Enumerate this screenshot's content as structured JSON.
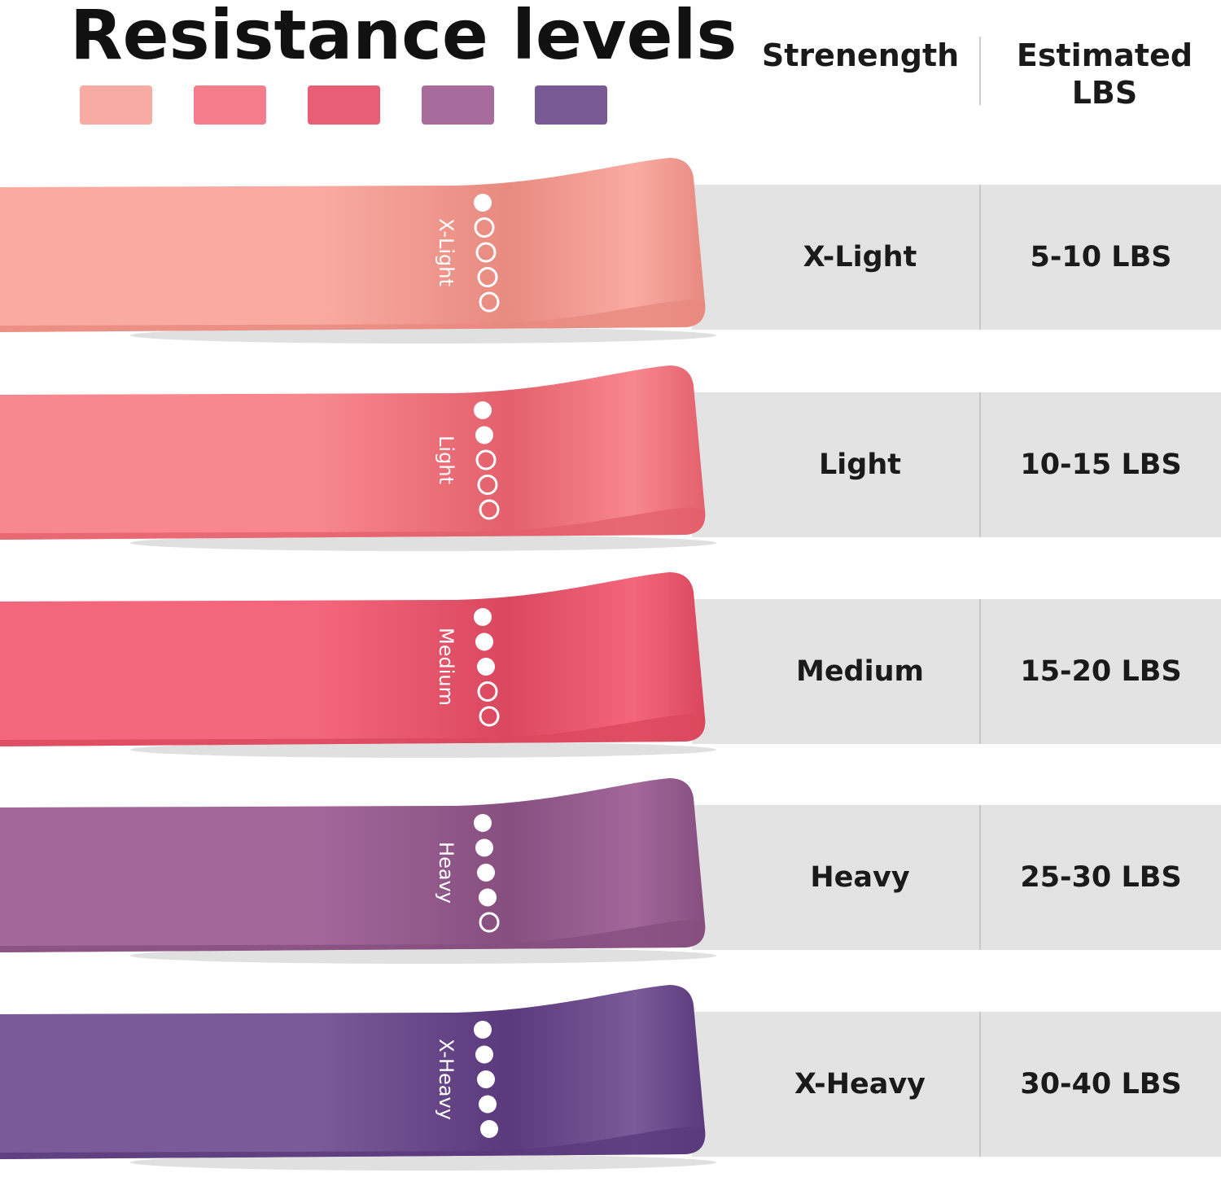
{
  "title": "Resistance levels",
  "swatches": [
    "#f8aba3",
    "#f57d8b",
    "#e85e74",
    "#a86c9c",
    "#7a5a94"
  ],
  "table": {
    "headers": {
      "strength": "Strenength",
      "lbs": "Estimated LBS"
    },
    "rows": [
      {
        "band_label": "X-Light",
        "strength": "X-Light",
        "lbs": "5-10  LBS",
        "level": 1,
        "color": "#f9aba2",
        "dark": "#e88a80"
      },
      {
        "band_label": "Light",
        "strength": "Light",
        "lbs": "10-15 LBS",
        "level": 2,
        "color": "#f8878f",
        "dark": "#e3606c"
      },
      {
        "band_label": "Medium",
        "strength": "Medium",
        "lbs": "15-20 LBS",
        "level": 3,
        "color": "#f4667b",
        "dark": "#d9485e"
      },
      {
        "band_label": "Heavy",
        "strength": "Heavy",
        "lbs": "25-30 LBS",
        "level": 4,
        "color": "#a3679a",
        "dark": "#864f80"
      },
      {
        "band_label": "X-Heavy",
        "strength": "X-Heavy",
        "lbs": "30-40 LBS",
        "level": 5,
        "color": "#7a5a98",
        "dark": "#5a3a7c"
      }
    ]
  }
}
